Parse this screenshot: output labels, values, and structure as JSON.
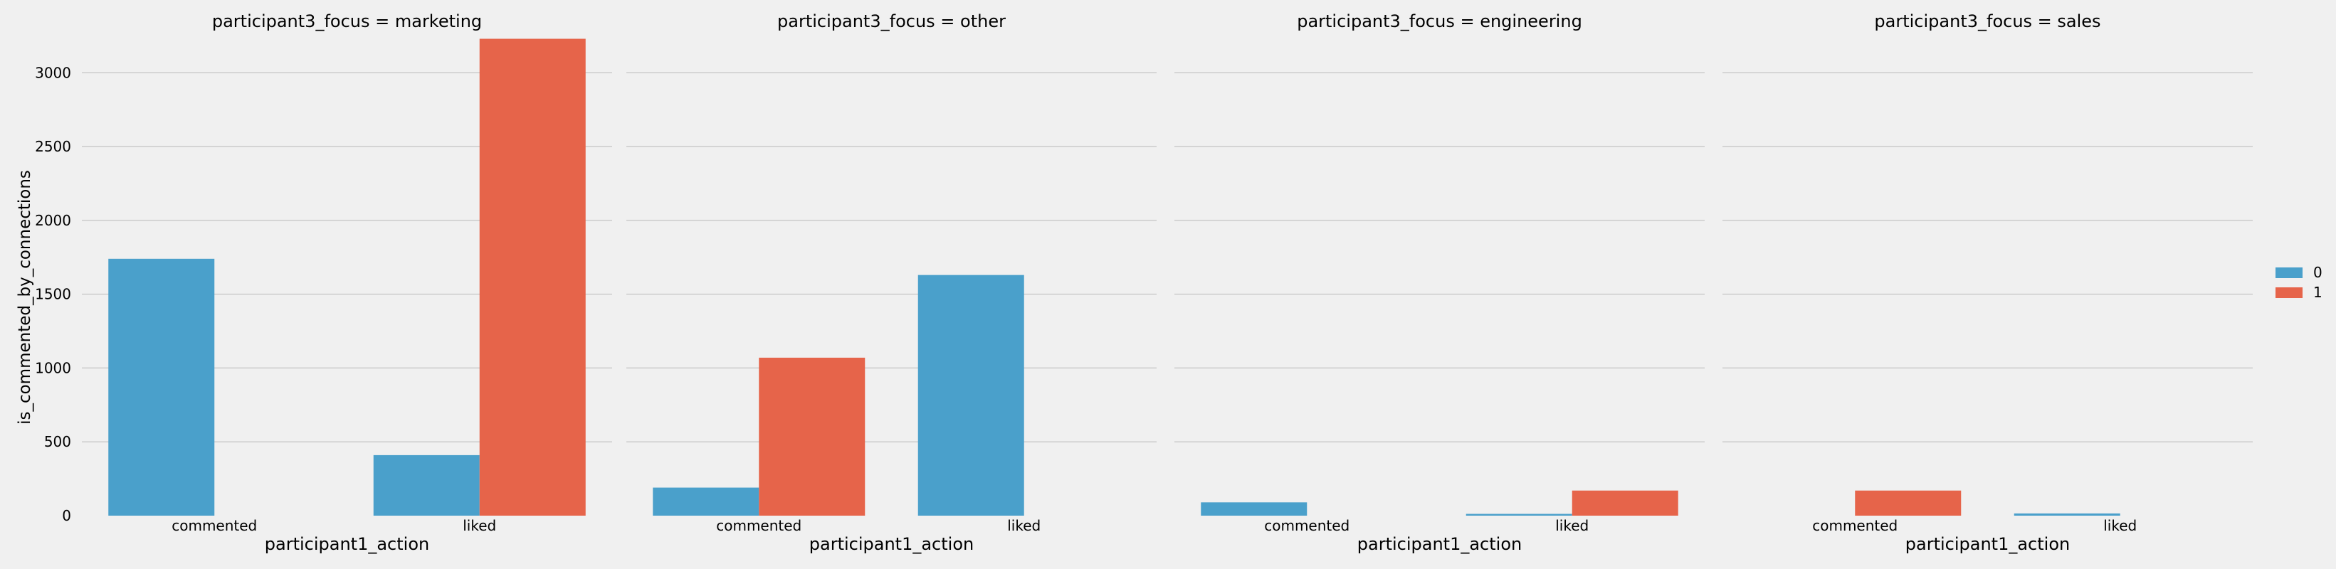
{
  "chart_data": {
    "type": "bar",
    "ylabel": "is_commented_by_connections",
    "xlabel": "participant1_action",
    "ylim": [
      0,
      3300
    ],
    "yticks": [
      0,
      500,
      1000,
      1500,
      2000,
      2500,
      3000
    ],
    "grid": true,
    "legend": {
      "placement": "right",
      "entries": [
        {
          "label": "0",
          "color": "#4aa0cb"
        },
        {
          "label": "1",
          "color": "#e6644a"
        }
      ]
    },
    "categories": [
      "commented",
      "liked"
    ],
    "panels": [
      {
        "title": "participant3_focus = marketing",
        "series": [
          {
            "name": "0",
            "values": [
              1740,
              410
            ]
          },
          {
            "name": "1",
            "values": [
              0,
              3230
            ]
          }
        ]
      },
      {
        "title": "participant3_focus = other",
        "series": [
          {
            "name": "0",
            "values": [
              190,
              1630
            ]
          },
          {
            "name": "1",
            "values": [
              1070,
              0
            ]
          }
        ]
      },
      {
        "title": "participant3_focus = engineering",
        "series": [
          {
            "name": "0",
            "values": [
              90,
              12
            ]
          },
          {
            "name": "1",
            "values": [
              0,
              170
            ]
          }
        ]
      },
      {
        "title": "participant3_focus = sales",
        "series": [
          {
            "name": "0",
            "values": [
              0,
              15
            ]
          },
          {
            "name": "1",
            "values": [
              170,
              0
            ]
          }
        ]
      }
    ]
  }
}
